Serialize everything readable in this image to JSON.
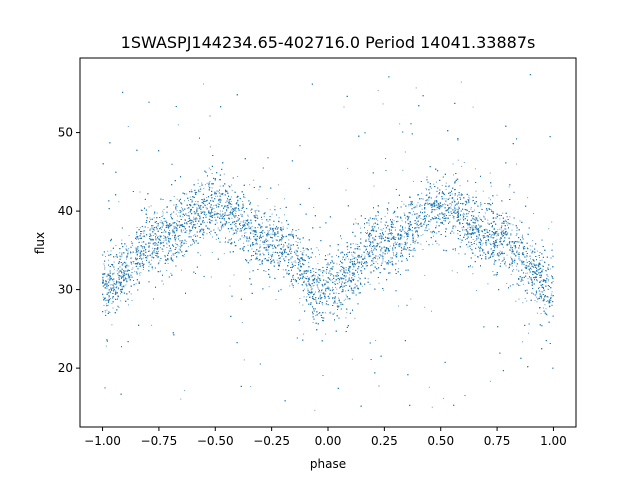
{
  "chart_data": {
    "type": "scatter",
    "title": "1SWASPJ144234.65-402716.0 Period 14041.33887s",
    "xlabel": "phase",
    "ylabel": "flux",
    "xlim": [
      -1.1,
      1.1
    ],
    "ylim": [
      12.5,
      59.5
    ],
    "xticks": [
      -1.0,
      -0.75,
      -0.5,
      -0.25,
      0.0,
      0.25,
      0.5,
      0.75,
      1.0
    ],
    "xtick_labels": [
      "−1.00",
      "−0.75",
      "−0.50",
      "−0.25",
      "0.00",
      "0.25",
      "0.50",
      "0.75",
      "1.00"
    ],
    "yticks": [
      20,
      30,
      40,
      50
    ],
    "ytick_labels": [
      "20",
      "30",
      "40",
      "50"
    ],
    "grid": false,
    "legend": "none",
    "series_color": "#1f77b4",
    "profile": {
      "description_points_phase": [
        -1.0,
        -0.75,
        -0.5,
        -0.25,
        0.0,
        0.25,
        0.5,
        0.75,
        1.0
      ],
      "mean_flux": [
        30.2,
        36.5,
        40.5,
        36.0,
        29.8,
        36.2,
        40.4,
        36.6,
        30.2
      ]
    },
    "phase_range": [
      -1.0,
      1.0
    ],
    "core_scatter_flux": 2.0,
    "outlier_range_flux": [
      14.5,
      57.5
    ]
  }
}
